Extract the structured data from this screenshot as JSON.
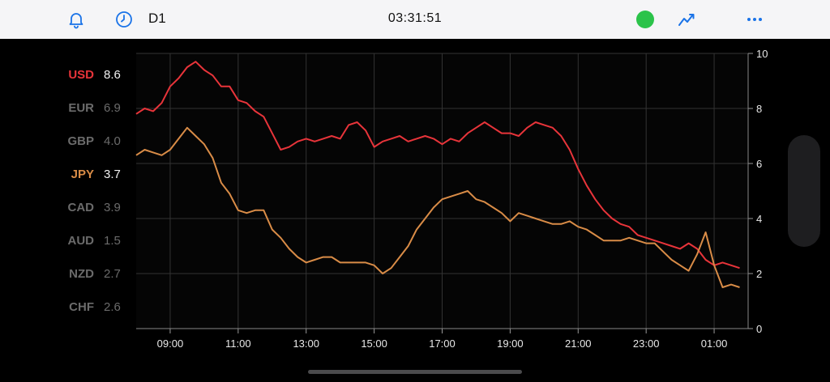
{
  "toolbar": {
    "timeframe": "D1",
    "time": "03:31:51",
    "status_color": "#2bc34a",
    "accent_color": "#1a73e8",
    "icons": [
      "bell-icon",
      "clock-icon",
      "status-dot",
      "line-chart-icon",
      "more-icon"
    ]
  },
  "legend": [
    {
      "code": "USD",
      "value": "8.6",
      "active": true,
      "color": "#e8343a"
    },
    {
      "code": "EUR",
      "value": "6.9",
      "active": false,
      "color": "#6b6b6b"
    },
    {
      "code": "GBP",
      "value": "4.0",
      "active": false,
      "color": "#6b6b6b"
    },
    {
      "code": "JPY",
      "value": "3.7",
      "active": true,
      "color": "#d98c47"
    },
    {
      "code": "CAD",
      "value": "3.9",
      "active": false,
      "color": "#6b6b6b"
    },
    {
      "code": "AUD",
      "value": "1.5",
      "active": false,
      "color": "#6b6b6b"
    },
    {
      "code": "NZD",
      "value": "2.7",
      "active": false,
      "color": "#6b6b6b"
    },
    {
      "code": "CHF",
      "value": "2.6",
      "active": false,
      "color": "#6b6b6b"
    }
  ],
  "chart_data": {
    "type": "line",
    "x_ticks": [
      "09:00",
      "11:00",
      "13:00",
      "15:00",
      "17:00",
      "19:00",
      "21:00",
      "23:00",
      "01:00"
    ],
    "y_ticks": [
      "0",
      "2",
      "4",
      "6",
      "8",
      "10"
    ],
    "ylim": [
      0,
      10
    ],
    "grid": true,
    "series": [
      {
        "name": "USD",
        "color": "#e8343a",
        "points": [
          [
            "08:00",
            7.8
          ],
          [
            "08:15",
            8.0
          ],
          [
            "08:30",
            7.9
          ],
          [
            "08:45",
            8.2
          ],
          [
            "09:00",
            8.8
          ],
          [
            "09:15",
            9.1
          ],
          [
            "09:30",
            9.5
          ],
          [
            "09:45",
            9.7
          ],
          [
            "10:00",
            9.4
          ],
          [
            "10:15",
            9.2
          ],
          [
            "10:30",
            8.8
          ],
          [
            "10:45",
            8.8
          ],
          [
            "11:00",
            8.3
          ],
          [
            "11:15",
            8.2
          ],
          [
            "11:30",
            7.9
          ],
          [
            "11:45",
            7.7
          ],
          [
            "12:00",
            7.1
          ],
          [
            "12:15",
            6.5
          ],
          [
            "12:30",
            6.6
          ],
          [
            "12:45",
            6.8
          ],
          [
            "13:00",
            6.9
          ],
          [
            "13:15",
            6.8
          ],
          [
            "13:30",
            6.9
          ],
          [
            "13:45",
            7.0
          ],
          [
            "14:00",
            6.9
          ],
          [
            "14:15",
            7.4
          ],
          [
            "14:30",
            7.5
          ],
          [
            "14:45",
            7.2
          ],
          [
            "15:00",
            6.6
          ],
          [
            "15:15",
            6.8
          ],
          [
            "15:30",
            6.9
          ],
          [
            "15:45",
            7.0
          ],
          [
            "16:00",
            6.8
          ],
          [
            "16:15",
            6.9
          ],
          [
            "16:30",
            7.0
          ],
          [
            "16:45",
            6.9
          ],
          [
            "17:00",
            6.7
          ],
          [
            "17:15",
            6.9
          ],
          [
            "17:30",
            6.8
          ],
          [
            "17:45",
            7.1
          ],
          [
            "18:00",
            7.3
          ],
          [
            "18:15",
            7.5
          ],
          [
            "18:30",
            7.3
          ],
          [
            "18:45",
            7.1
          ],
          [
            "19:00",
            7.1
          ],
          [
            "19:15",
            7.0
          ],
          [
            "19:30",
            7.3
          ],
          [
            "19:45",
            7.5
          ],
          [
            "20:00",
            7.4
          ],
          [
            "20:15",
            7.3
          ],
          [
            "20:30",
            7.0
          ],
          [
            "20:45",
            6.5
          ],
          [
            "21:00",
            5.8
          ],
          [
            "21:15",
            5.2
          ],
          [
            "21:30",
            4.7
          ],
          [
            "21:45",
            4.3
          ],
          [
            "22:00",
            4.0
          ],
          [
            "22:15",
            3.8
          ],
          [
            "22:30",
            3.7
          ],
          [
            "22:45",
            3.4
          ],
          [
            "23:00",
            3.3
          ],
          [
            "23:15",
            3.2
          ],
          [
            "23:30",
            3.1
          ],
          [
            "23:45",
            3.0
          ],
          [
            "24:00",
            2.9
          ],
          [
            "24:15",
            3.1
          ],
          [
            "24:30",
            2.9
          ],
          [
            "24:45",
            2.5
          ],
          [
            "25:00",
            2.3
          ],
          [
            "25:15",
            2.4
          ],
          [
            "25:30",
            2.3
          ],
          [
            "25:45",
            2.2
          ]
        ]
      },
      {
        "name": "JPY",
        "color": "#d98c47",
        "points": [
          [
            "08:00",
            6.3
          ],
          [
            "08:15",
            6.5
          ],
          [
            "08:30",
            6.4
          ],
          [
            "08:45",
            6.3
          ],
          [
            "09:00",
            6.5
          ],
          [
            "09:15",
            6.9
          ],
          [
            "09:30",
            7.3
          ],
          [
            "09:45",
            7.0
          ],
          [
            "10:00",
            6.7
          ],
          [
            "10:15",
            6.2
          ],
          [
            "10:30",
            5.3
          ],
          [
            "10:45",
            4.9
          ],
          [
            "11:00",
            4.3
          ],
          [
            "11:15",
            4.2
          ],
          [
            "11:30",
            4.3
          ],
          [
            "11:45",
            4.3
          ],
          [
            "12:00",
            3.6
          ],
          [
            "12:15",
            3.3
          ],
          [
            "12:30",
            2.9
          ],
          [
            "12:45",
            2.6
          ],
          [
            "13:00",
            2.4
          ],
          [
            "13:15",
            2.5
          ],
          [
            "13:30",
            2.6
          ],
          [
            "13:45",
            2.6
          ],
          [
            "14:00",
            2.4
          ],
          [
            "14:15",
            2.4
          ],
          [
            "14:30",
            2.4
          ],
          [
            "14:45",
            2.4
          ],
          [
            "15:00",
            2.3
          ],
          [
            "15:15",
            2.0
          ],
          [
            "15:30",
            2.2
          ],
          [
            "15:45",
            2.6
          ],
          [
            "16:00",
            3.0
          ],
          [
            "16:15",
            3.6
          ],
          [
            "16:30",
            4.0
          ],
          [
            "16:45",
            4.4
          ],
          [
            "17:00",
            4.7
          ],
          [
            "17:15",
            4.8
          ],
          [
            "17:30",
            4.9
          ],
          [
            "17:45",
            5.0
          ],
          [
            "18:00",
            4.7
          ],
          [
            "18:15",
            4.6
          ],
          [
            "18:30",
            4.4
          ],
          [
            "18:45",
            4.2
          ],
          [
            "19:00",
            3.9
          ],
          [
            "19:15",
            4.2
          ],
          [
            "19:30",
            4.1
          ],
          [
            "19:45",
            4.0
          ],
          [
            "20:00",
            3.9
          ],
          [
            "20:15",
            3.8
          ],
          [
            "20:30",
            3.8
          ],
          [
            "20:45",
            3.9
          ],
          [
            "21:00",
            3.7
          ],
          [
            "21:15",
            3.6
          ],
          [
            "21:30",
            3.4
          ],
          [
            "21:45",
            3.2
          ],
          [
            "22:00",
            3.2
          ],
          [
            "22:15",
            3.2
          ],
          [
            "22:30",
            3.3
          ],
          [
            "22:45",
            3.2
          ],
          [
            "23:00",
            3.1
          ],
          [
            "23:15",
            3.1
          ],
          [
            "23:30",
            2.8
          ],
          [
            "23:45",
            2.5
          ],
          [
            "24:00",
            2.3
          ],
          [
            "24:15",
            2.1
          ],
          [
            "24:30",
            2.7
          ],
          [
            "24:45",
            3.5
          ],
          [
            "25:00",
            2.3
          ],
          [
            "25:15",
            1.5
          ],
          [
            "25:30",
            1.6
          ],
          [
            "25:45",
            1.5
          ]
        ]
      }
    ]
  }
}
